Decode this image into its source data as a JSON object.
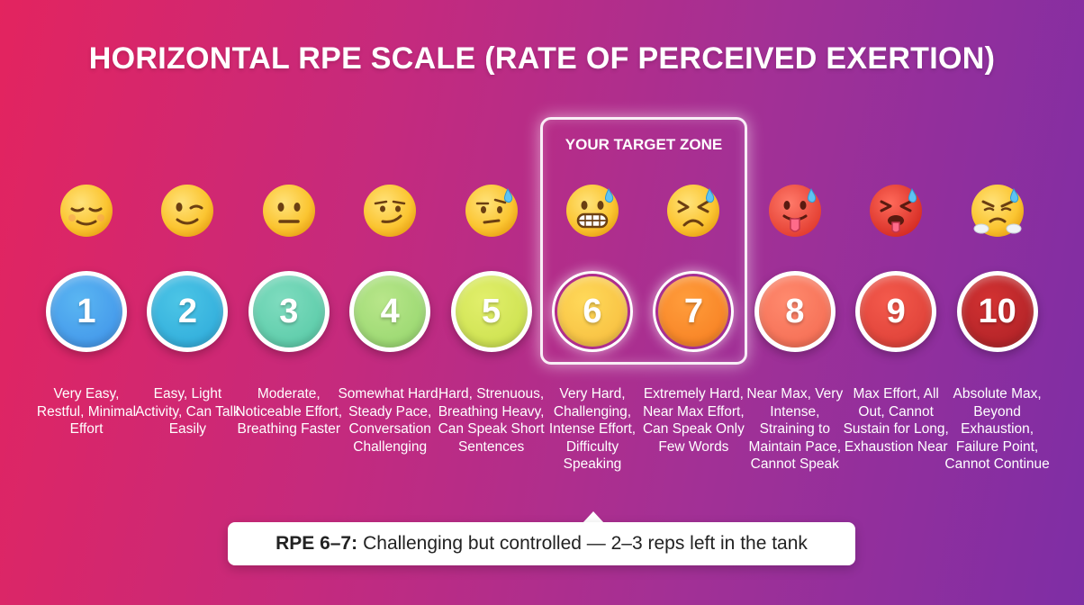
{
  "title": "HORIZONTAL RPE SCALE (RATE OF PERCEIVED EXERTION)",
  "target_zone": {
    "label": "YOUR TARGET ZONE"
  },
  "levels": [
    {
      "number": "1",
      "color_start": "#5ab6f2",
      "color_end": "#3d8fe8",
      "emoji": "relieved-face-icon",
      "description": "Very Easy, Restful, Minimal Effort"
    },
    {
      "number": "2",
      "color_start": "#4cc5e6",
      "color_end": "#2aa7d9",
      "emoji": "winking-face-icon",
      "description": "Easy, Light Activity, Can Talk Easily"
    },
    {
      "number": "3",
      "color_start": "#7fdcbf",
      "color_end": "#52c7a3",
      "emoji": "neutral-face-icon",
      "description": "Moderate, Noticeable Effort, Breathing Faster"
    },
    {
      "number": "4",
      "color_start": "#b8e68a",
      "color_end": "#92d46a",
      "emoji": "smirking-face-icon",
      "description": "Somewhat Hard, Steady Pace, Conversation Challenging"
    },
    {
      "number": "5",
      "color_start": "#e2ef6c",
      "color_end": "#c7de48",
      "emoji": "raised-eyebrow-sweat-face-icon",
      "description": "Hard, Strenuous, Breathing Heavy, Can Speak Short Sentences"
    },
    {
      "number": "6",
      "color_start": "#ffd95a",
      "color_end": "#f5b93a",
      "emoji": "grimacing-sweat-face-icon",
      "description": "Very Hard, Challenging, Intense Effort, Difficulty Speaking"
    },
    {
      "number": "7",
      "color_start": "#ff9d3c",
      "color_end": "#f57b1e",
      "emoji": "tired-sweat-face-icon",
      "description": "Extremely Hard, Near Max Effort, Can Speak Only Few Words"
    },
    {
      "number": "8",
      "color_start": "#ff8a6e",
      "color_end": "#f2674e",
      "emoji": "hot-face-tongue-icon",
      "description": "Near Max, Very Intense, Straining to Maintain Pace, Cannot Speak"
    },
    {
      "number": "9",
      "color_start": "#f45a4c",
      "color_end": "#d83a33",
      "emoji": "exhausted-red-face-icon",
      "description": "Max Effort, All Out, Cannot Sustain for Long, Exhaustion Near"
    },
    {
      "number": "10",
      "color_start": "#d33232",
      "color_end": "#a81f25",
      "emoji": "steaming-face-icon",
      "description": "Absolute Max, Beyond Exhaustion, Failure Point, Cannot Continue"
    }
  ],
  "callout": {
    "label": "RPE 6–7:",
    "text": "Challenging but controlled — 2–3 reps left in the tank"
  }
}
